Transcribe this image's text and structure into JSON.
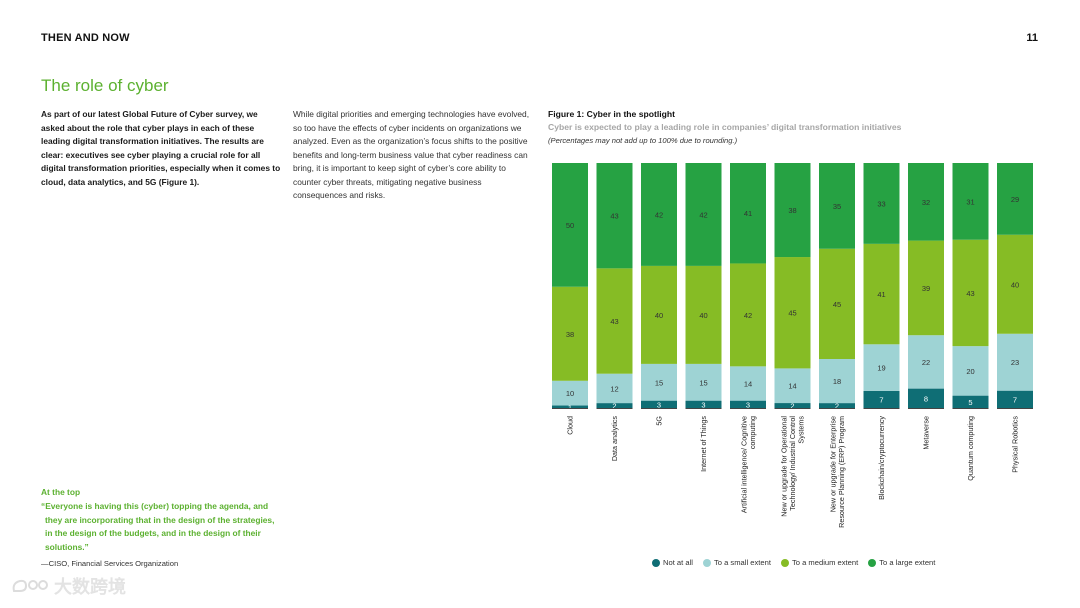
{
  "header": {
    "title": "THEN AND NOW",
    "page_number": "11"
  },
  "section": {
    "title": "The role of cyber"
  },
  "intro_text": "As part of our latest Global Future of Cyber survey, we asked about the role that cyber plays in each of these leading digital transformation initiatives. The results are clear: executives see cyber playing a crucial role for all digital transformation priorities, especially when it comes to cloud, data analytics, and 5G (Figure 1).",
  "body_text": "While digital priorities and emerging technologies have evolved, so too have the effects of cyber incidents on organizations we analyzed. Even as the organization’s focus shifts to the positive benefits and long-term business value that cyber readiness can bring, it is important to keep sight of cyber’s core ability to counter cyber threats, mitigating negative business consequences and risks.",
  "quote": {
    "heading": "At the top",
    "text": "“Everyone is having this (cyber) topping the agenda, and they are incorporating that in the design of the strategies, in the design of the budgets, and in the design of their solutions.”",
    "attribution": "—CISO, Financial Services Organization"
  },
  "figure": {
    "title": "Figure 1: Cyber in the spotlight",
    "subtitle": "Cyber is expected to play a leading role in companies’ digital transformation initiatives",
    "note": "(Percentages may not add up to 100% due to rounding.)"
  },
  "chart_data": {
    "type": "bar",
    "stacked": true,
    "categories": [
      "Cloud",
      "Data analytics",
      "5G",
      "Internet of Things",
      "Artificial intelligence/ Cognitive computing",
      "New or upgrade for Operational Technology/ Industrial Control Systems",
      "New or upgrade for Enterprise Resource Planning (ERP) Program",
      "Blockchain/cryptocurrency",
      "Metaverse",
      "Quantum computing",
      "Physical Robotics"
    ],
    "series": [
      {
        "name": "Not at all",
        "color": "#0f6e75",
        "values": [
          1,
          2,
          3,
          3,
          3,
          2,
          2,
          7,
          8,
          5,
          7
        ]
      },
      {
        "name": "To a small extent",
        "color": "#9ed3d4",
        "values": [
          10,
          12,
          15,
          15,
          14,
          14,
          18,
          19,
          22,
          20,
          23
        ]
      },
      {
        "name": "To a medium extent",
        "color": "#86bc25",
        "values": [
          38,
          43,
          40,
          40,
          42,
          45,
          45,
          41,
          39,
          43,
          40
        ]
      },
      {
        "name": "To a large extent",
        "color": "#26a243",
        "values": [
          50,
          43,
          42,
          42,
          41,
          38,
          35,
          33,
          32,
          31,
          29
        ]
      }
    ],
    "legend_position": "bottom",
    "grid": false
  },
  "watermark": {
    "text": "大数跨境"
  }
}
